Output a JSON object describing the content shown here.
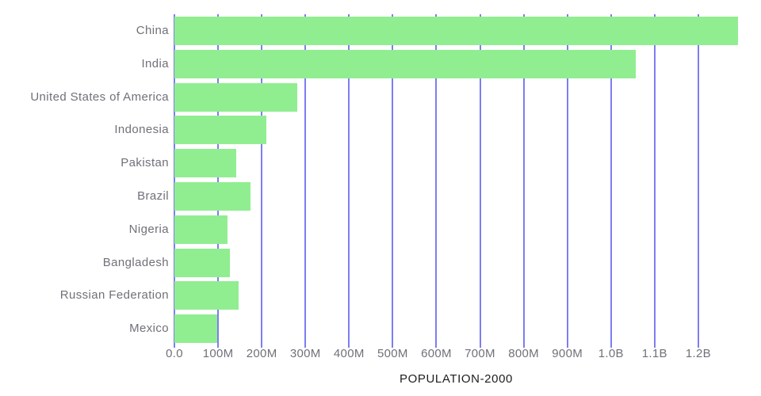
{
  "chart_data": {
    "type": "bar",
    "orientation": "horizontal",
    "title": "",
    "xlabel": "POPULATION-2000",
    "ylabel": "",
    "categories": [
      "China",
      "India",
      "United States of America",
      "Indonesia",
      "Pakistan",
      "Brazil",
      "Nigeria",
      "Bangladesh",
      "Russian Federation",
      "Mexico"
    ],
    "values_millions": [
      1290.6,
      1056.6,
      281.7,
      211.5,
      142.3,
      174.8,
      122.3,
      127.7,
      146.4,
      98.9
    ],
    "x_axis": {
      "min_millions": 0,
      "max_millions": 1291,
      "ticks": [
        {
          "value_millions": 0,
          "label": "0.0"
        },
        {
          "value_millions": 100,
          "label": "100M"
        },
        {
          "value_millions": 200,
          "label": "200M"
        },
        {
          "value_millions": 300,
          "label": "300M"
        },
        {
          "value_millions": 400,
          "label": "400M"
        },
        {
          "value_millions": 500,
          "label": "500M"
        },
        {
          "value_millions": 600,
          "label": "600M"
        },
        {
          "value_millions": 700,
          "label": "700M"
        },
        {
          "value_millions": 800,
          "label": "800M"
        },
        {
          "value_millions": 900,
          "label": "900M"
        },
        {
          "value_millions": 1000,
          "label": "1.0B"
        },
        {
          "value_millions": 1100,
          "label": "1.1B"
        },
        {
          "value_millions": 1200,
          "label": "1.2B"
        }
      ]
    },
    "grid": true,
    "legend": false,
    "colors": {
      "bar": "#90ee90",
      "grid": "#7d7df2",
      "axis_line": "#7d7df2",
      "category_label": "#70707a",
      "tick_label": "#70707a",
      "axis_title": "#1d1d1d",
      "background": "#ffffff"
    }
  }
}
